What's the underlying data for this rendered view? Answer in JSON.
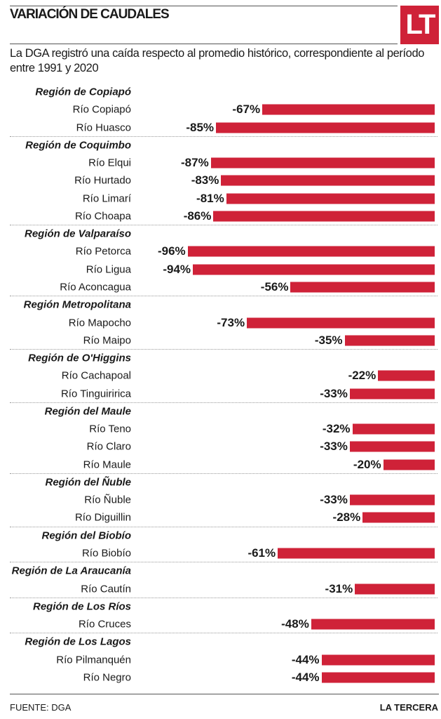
{
  "title": "VARIACIÓN DE CAUDALES",
  "logo": "LT",
  "subtitle": "La DGA registró una caída respecto al promedio histórico, correspondiente al período entre 1991 y 2020",
  "footer": {
    "source": "FUENTE: DGA",
    "brand": "LA TERCERA"
  },
  "colors": {
    "bar": "#cf2238"
  },
  "chart_data": {
    "type": "bar",
    "orientation": "horizontal",
    "unit": "%",
    "xlim": [
      -100,
      0
    ],
    "groups": [
      {
        "region": "Región de Copiapó",
        "rivers": [
          {
            "name": "Río Copiapó",
            "value": -67,
            "label": "-67%"
          },
          {
            "name": "Río Huasco",
            "value": -85,
            "label": "-85%"
          }
        ]
      },
      {
        "region": "Región de Coquimbo",
        "rivers": [
          {
            "name": "Río Elqui",
            "value": -87,
            "label": "-87%"
          },
          {
            "name": "Río Hurtado",
            "value": -83,
            "label": "-83%"
          },
          {
            "name": "Río Limarí",
            "value": -81,
            "label": "-81%"
          },
          {
            "name": "Río Choapa",
            "value": -86,
            "label": "-86%"
          }
        ]
      },
      {
        "region": "Región de Valparaíso",
        "rivers": [
          {
            "name": "Río Petorca",
            "value": -96,
            "label": "-96%"
          },
          {
            "name": "Río Ligua",
            "value": -94,
            "label": "-94%"
          },
          {
            "name": "Río Aconcagua",
            "value": -56,
            "label": "-56%"
          }
        ]
      },
      {
        "region": "Región Metropolitana",
        "rivers": [
          {
            "name": "Río Mapocho",
            "value": -73,
            "label": "-73%"
          },
          {
            "name": "Río Maipo",
            "value": -35,
            "label": "-35%"
          }
        ]
      },
      {
        "region": "Región de O'Higgins",
        "rivers": [
          {
            "name": "Río Cachapoal",
            "value": -22,
            "label": "-22%"
          },
          {
            "name": "Río Tinguiririca",
            "value": -33,
            "label": "-33%"
          }
        ]
      },
      {
        "region": "Región del Maule",
        "rivers": [
          {
            "name": "Río Teno",
            "value": -32,
            "label": "-32%"
          },
          {
            "name": "Río Claro",
            "value": -33,
            "label": "-33%"
          },
          {
            "name": "Río Maule",
            "value": -20,
            "label": "-20%"
          }
        ]
      },
      {
        "region": "Región del Ñuble",
        "rivers": [
          {
            "name": "Río Ñuble",
            "value": -33,
            "label": "-33%"
          },
          {
            "name": "Río Diguillin",
            "value": -28,
            "label": "-28%"
          }
        ]
      },
      {
        "region": "Región del Biobío",
        "rivers": [
          {
            "name": "Río Biobío",
            "value": -61,
            "label": "-61%"
          }
        ]
      },
      {
        "region": "Región de La Araucanía",
        "rivers": [
          {
            "name": "Río Cautín",
            "value": -31,
            "label": "-31%"
          }
        ]
      },
      {
        "region": "Región de Los Ríos",
        "rivers": [
          {
            "name": "Río Cruces",
            "value": -48,
            "label": "-48%"
          }
        ]
      },
      {
        "region": "Región de Los Lagos",
        "rivers": [
          {
            "name": "Río Pilmanquén",
            "value": -44,
            "label": "-44%"
          },
          {
            "name": "Río Negro",
            "value": -44,
            "label": "-44%"
          }
        ]
      }
    ]
  }
}
